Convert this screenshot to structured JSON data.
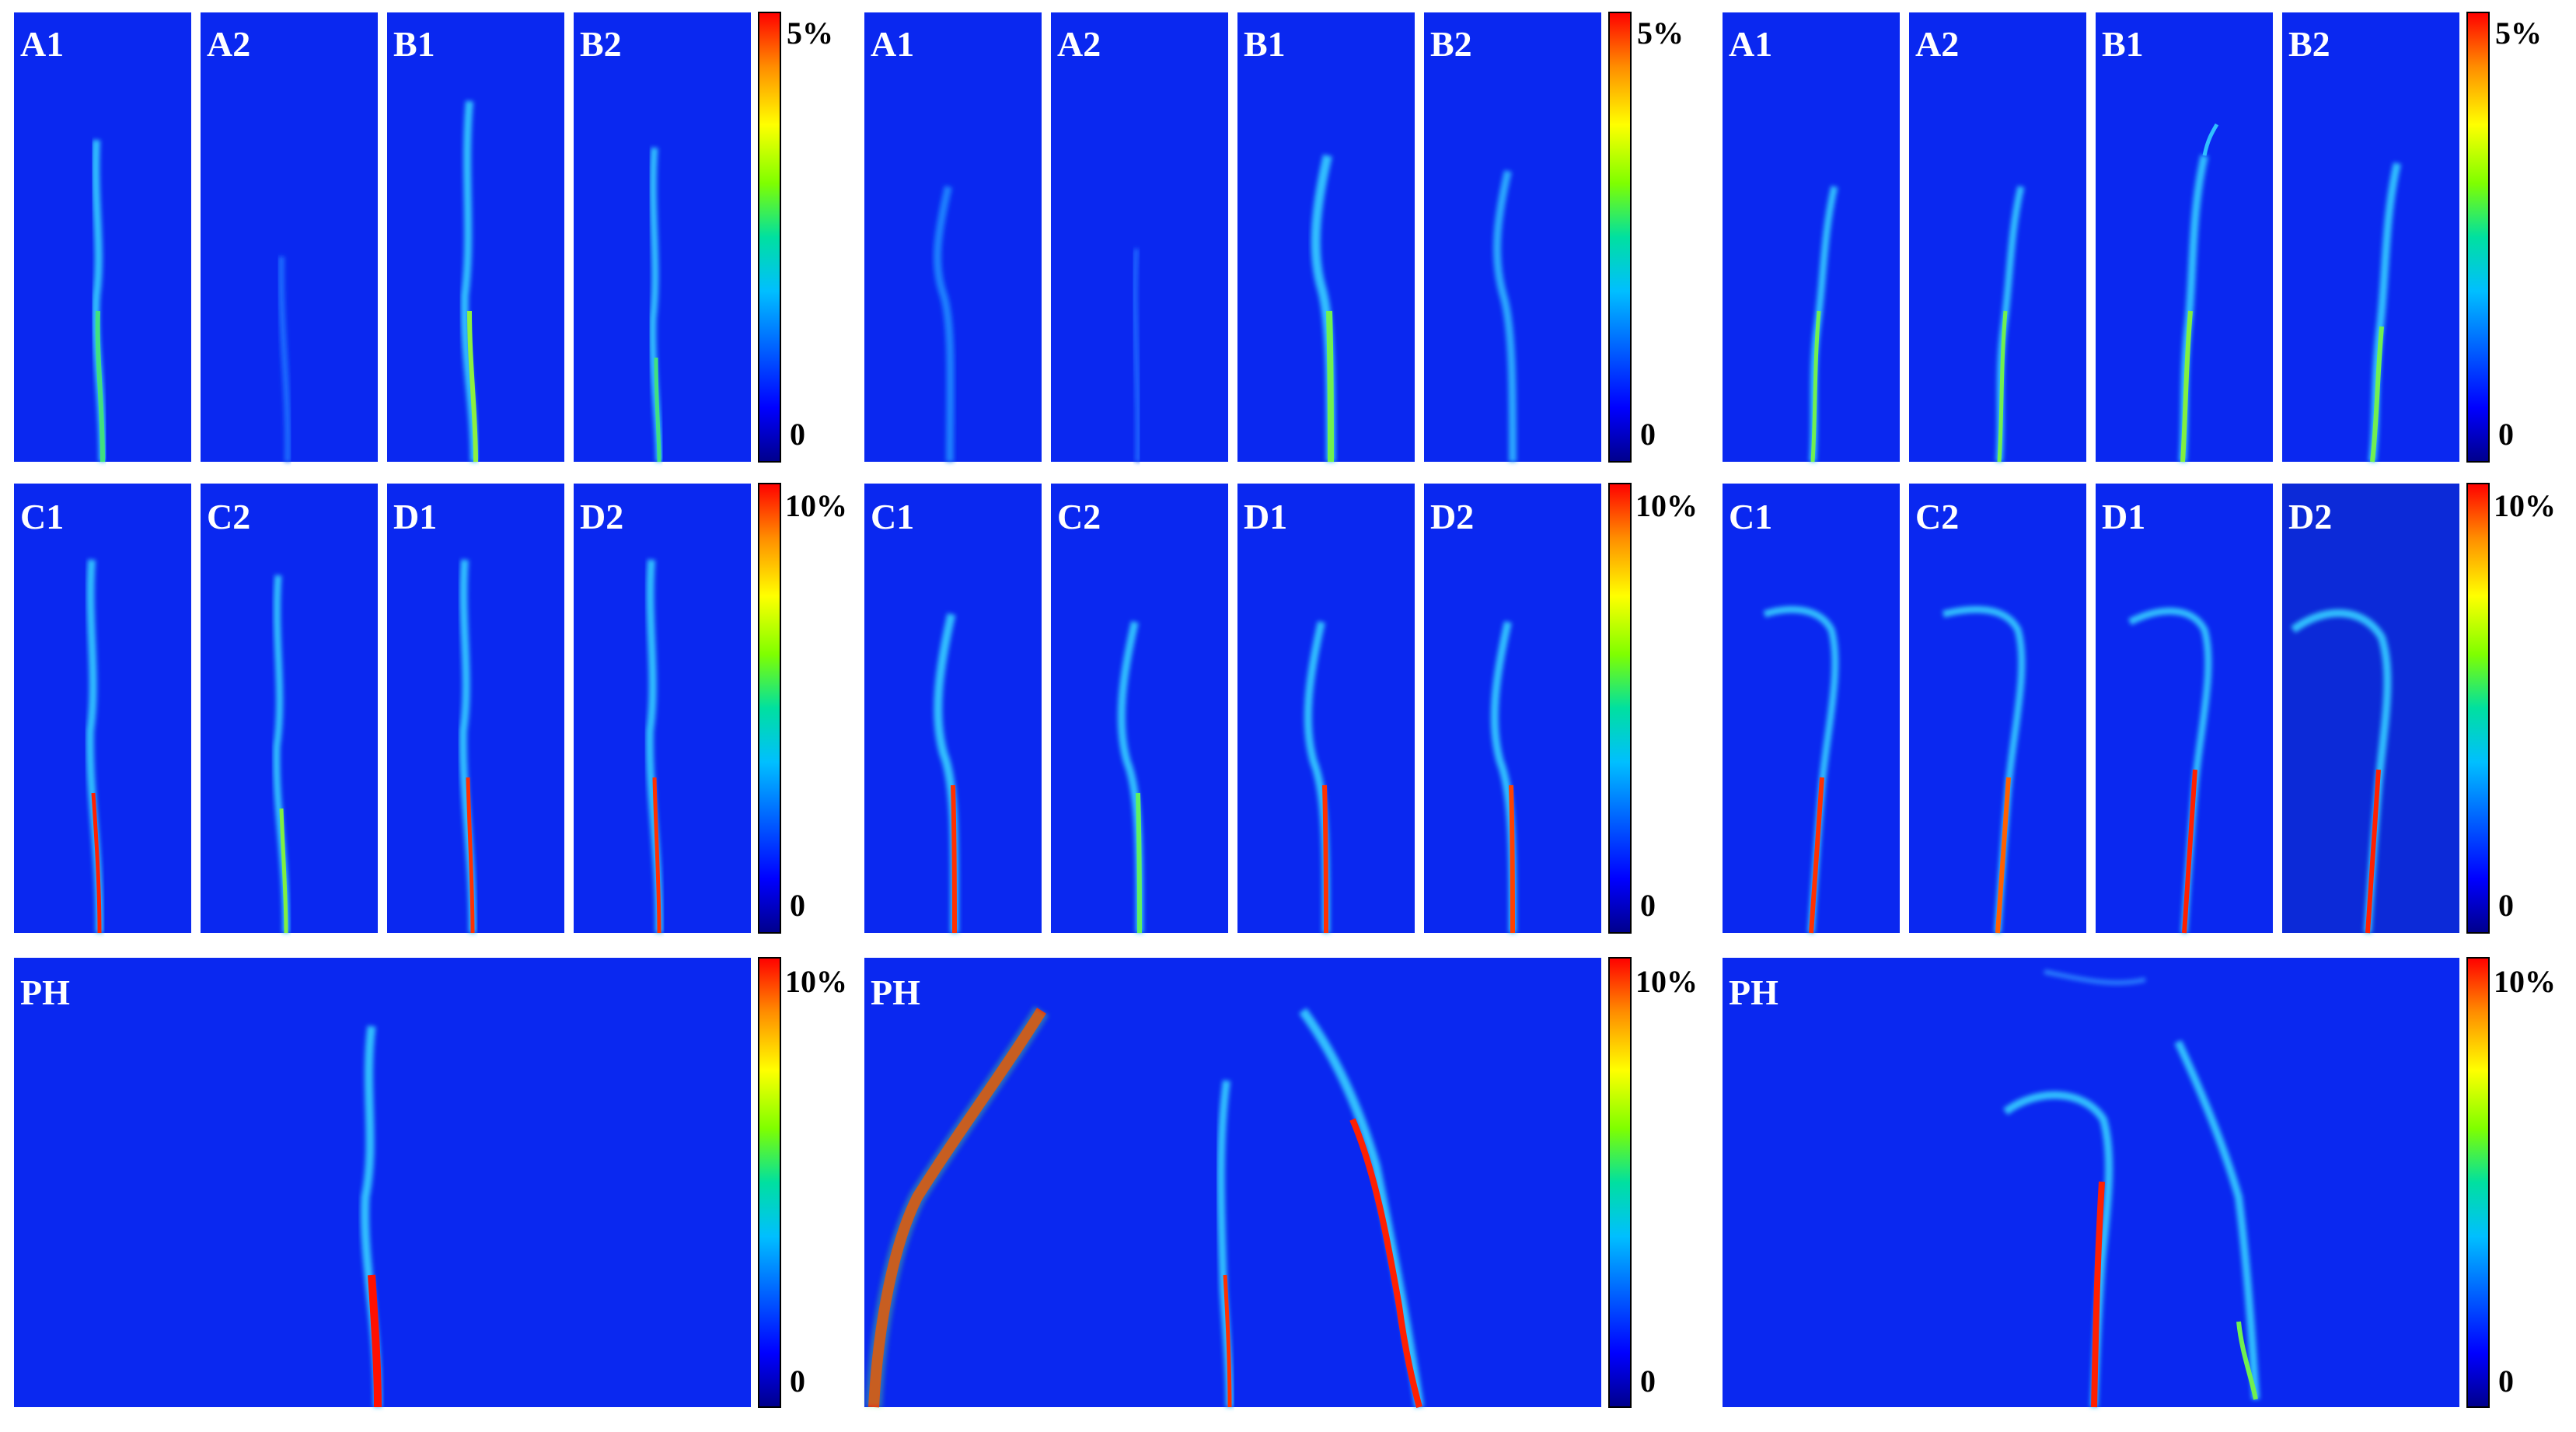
{
  "colormap": {
    "stops": [
      "#00008b",
      "#0000ff",
      "#00bfff",
      "#00e0a0",
      "#7fff00",
      "#ffff00",
      "#ff8c00",
      "#ff0000"
    ],
    "background": "#0a28f0"
  },
  "groups": [
    {
      "small_rows": [
        {
          "panels": [
            {
              "label": "A1"
            },
            {
              "label": "A2"
            },
            {
              "label": "B1"
            },
            {
              "label": "B2"
            }
          ],
          "colorbar": {
            "max_label": "5%",
            "min_label": "0"
          }
        },
        {
          "panels": [
            {
              "label": "C1"
            },
            {
              "label": "C2"
            },
            {
              "label": "D1"
            },
            {
              "label": "D2"
            }
          ],
          "colorbar": {
            "max_label": "10%",
            "min_label": "0"
          }
        }
      ],
      "large": {
        "label": "PH",
        "colorbar": {
          "max_label": "10%",
          "min_label": "0"
        }
      }
    },
    {
      "small_rows": [
        {
          "panels": [
            {
              "label": "A1"
            },
            {
              "label": "A2"
            },
            {
              "label": "B1"
            },
            {
              "label": "B2"
            }
          ],
          "colorbar": {
            "max_label": "5%",
            "min_label": "0"
          }
        },
        {
          "panels": [
            {
              "label": "C1"
            },
            {
              "label": "C2"
            },
            {
              "label": "D1"
            },
            {
              "label": "D2"
            }
          ],
          "colorbar": {
            "max_label": "10%",
            "min_label": "0"
          }
        }
      ],
      "large": {
        "label": "PH",
        "colorbar": {
          "max_label": "10%",
          "min_label": "0"
        }
      }
    },
    {
      "small_rows": [
        {
          "panels": [
            {
              "label": "A1"
            },
            {
              "label": "A2"
            },
            {
              "label": "B1"
            },
            {
              "label": "B2"
            }
          ],
          "colorbar": {
            "max_label": "5%",
            "min_label": "0"
          }
        },
        {
          "panels": [
            {
              "label": "C1"
            },
            {
              "label": "C2"
            },
            {
              "label": "D1"
            },
            {
              "label": "D2"
            }
          ],
          "colorbar": {
            "max_label": "10%",
            "min_label": "0"
          }
        }
      ],
      "large": {
        "label": "PH",
        "colorbar": {
          "max_label": "10%",
          "min_label": "0"
        }
      }
    }
  ]
}
